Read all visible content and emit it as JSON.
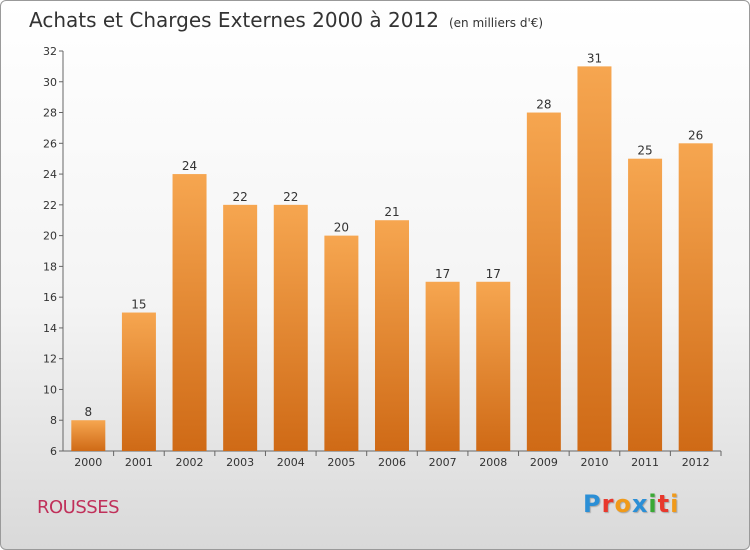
{
  "title": "Achats et Charges Externes 2000 à 2012",
  "subtitle": "(en milliers d'€)",
  "commune": "ROUSSES",
  "logo": "Proxiti",
  "logo_colors": [
    "#2b8fd6",
    "#e8382c",
    "#f09a1a",
    "#2b8fd6",
    "#3aa935",
    "#e8382c",
    "#f09a1a"
  ],
  "colors": {
    "bar_top": "#f6a650",
    "bar_bottom": "#cf6a16",
    "accent": "#c0305a"
  },
  "chart_data": {
    "type": "bar",
    "categories": [
      "2000",
      "2001",
      "2002",
      "2003",
      "2004",
      "2005",
      "2006",
      "2007",
      "2008",
      "2009",
      "2010",
      "2011",
      "2012"
    ],
    "values": [
      8,
      15,
      24,
      22,
      22,
      20,
      21,
      17,
      17,
      28,
      31,
      25,
      26
    ],
    "ylim": [
      6,
      32
    ],
    "yticks": [
      6,
      8,
      10,
      12,
      14,
      16,
      18,
      20,
      22,
      24,
      26,
      28,
      30,
      32
    ],
    "grid": false,
    "xlabel": "",
    "ylabel": ""
  }
}
